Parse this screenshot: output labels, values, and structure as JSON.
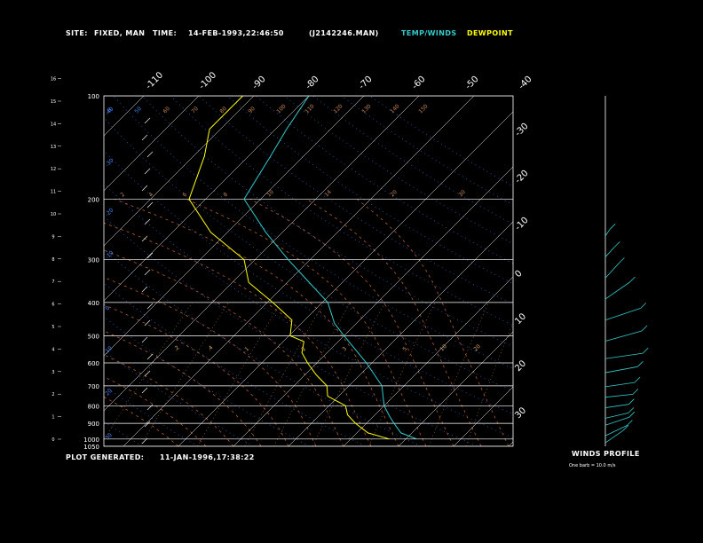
{
  "header": {
    "site_label": "SITE:",
    "site_value": "FIXED, MAN",
    "time_label": "TIME:",
    "time_value": "14-FEB-1993,22:46:50",
    "file_value": "(J2142246.MAN)",
    "legend_temp": "TEMP/WINDS",
    "legend_dew": "DEWPOINT"
  },
  "footer": {
    "generated_label": "PLOT GENERATED:",
    "generated_value": "11-JAN-1996,17:38:22"
  },
  "winds_panel": {
    "title": "WINDS PROFILE",
    "note": "One barb = 10.0 m/s"
  },
  "colors": {
    "temp": "#33cccc",
    "dew": "#ffff00",
    "grid": "#ffffff",
    "mixing": "#cc6633",
    "moist": "#cc6633",
    "dry": "#4488ff"
  },
  "chart_data": {
    "type": "line",
    "title": "",
    "pressure_levels": [
      1050,
      1000,
      900,
      800,
      700,
      600,
      500,
      400,
      300,
      200,
      100
    ],
    "height_ticks_km": [
      0,
      1,
      2,
      3,
      4,
      5,
      6,
      7,
      8,
      9,
      10,
      11,
      12,
      13,
      14,
      15,
      16
    ],
    "temp_ticks_top": [
      -110,
      -100,
      -90,
      -80,
      -70,
      -60,
      -50,
      -40
    ],
    "temp_ticks_right": [
      -30,
      -20,
      -10,
      0,
      10,
      20,
      30
    ],
    "mixing_ratio_labels": [
      ".2",
      ".4",
      "1",
      "2",
      "3",
      "5",
      "10",
      "20"
    ],
    "top_row_labels": [
      "-8",
      "50",
      "60",
      "70",
      "80",
      "90",
      "100",
      "110",
      "120",
      "130",
      "140",
      "150"
    ],
    "row_200_labels": [
      "2",
      "4",
      "6",
      "8",
      "10",
      "14",
      "20",
      "30"
    ],
    "left_dry_labels": [
      "-40",
      "-30",
      "-20",
      "-10",
      "0",
      "10",
      "20",
      "30"
    ],
    "series": [
      {
        "name": "TEMP/WINDS",
        "pressure": [
          1000,
          960,
          900,
          860,
          800,
          700,
          600,
          500,
          460,
          400,
          350,
          300,
          250,
          200,
          150,
          125,
          100
        ],
        "temp": [
          22,
          18,
          15,
          13,
          10,
          6,
          -1,
          -10,
          -14,
          -19,
          -26,
          -34,
          -43,
          -53,
          -56,
          -58,
          -60
        ]
      },
      {
        "name": "DEWPOINT",
        "pressure": [
          1000,
          960,
          900,
          850,
          800,
          750,
          700,
          650,
          600,
          560,
          520,
          500,
          450,
          400,
          350,
          300,
          250,
          200,
          150,
          125,
          100
        ],
        "temp": [
          17,
          12,
          8,
          5,
          3,
          -2,
          -4,
          -8,
          -12,
          -14,
          -17,
          -19,
          -23,
          -29,
          -37,
          -42,
          -53,
          -63,
          -68,
          -72,
          -72
        ]
      }
    ],
    "winds": [
      {
        "y": 0.99,
        "len": 40,
        "dir": 210
      },
      {
        "y": 0.97,
        "len": 38,
        "dir": 220
      },
      {
        "y": 0.94,
        "len": 35,
        "dir": 230
      },
      {
        "y": 0.92,
        "len": 30,
        "dir": 240
      },
      {
        "y": 0.89,
        "len": 28,
        "dir": 250
      },
      {
        "y": 0.86,
        "len": 32,
        "dir": 255
      },
      {
        "y": 0.83,
        "len": 35,
        "dir": 250
      },
      {
        "y": 0.79,
        "len": 40,
        "dir": 245
      },
      {
        "y": 0.75,
        "len": 45,
        "dir": 250
      },
      {
        "y": 0.7,
        "len": 50,
        "dir": 235
      },
      {
        "y": 0.64,
        "len": 52,
        "dir": 230
      },
      {
        "y": 0.58,
        "len": 55,
        "dir": 210
      },
      {
        "y": 0.52,
        "len": 45,
        "dir": 200
      },
      {
        "y": 0.46,
        "len": 30,
        "dir": 200
      },
      {
        "y": 0.4,
        "len": 20,
        "dir": 195
      }
    ]
  }
}
